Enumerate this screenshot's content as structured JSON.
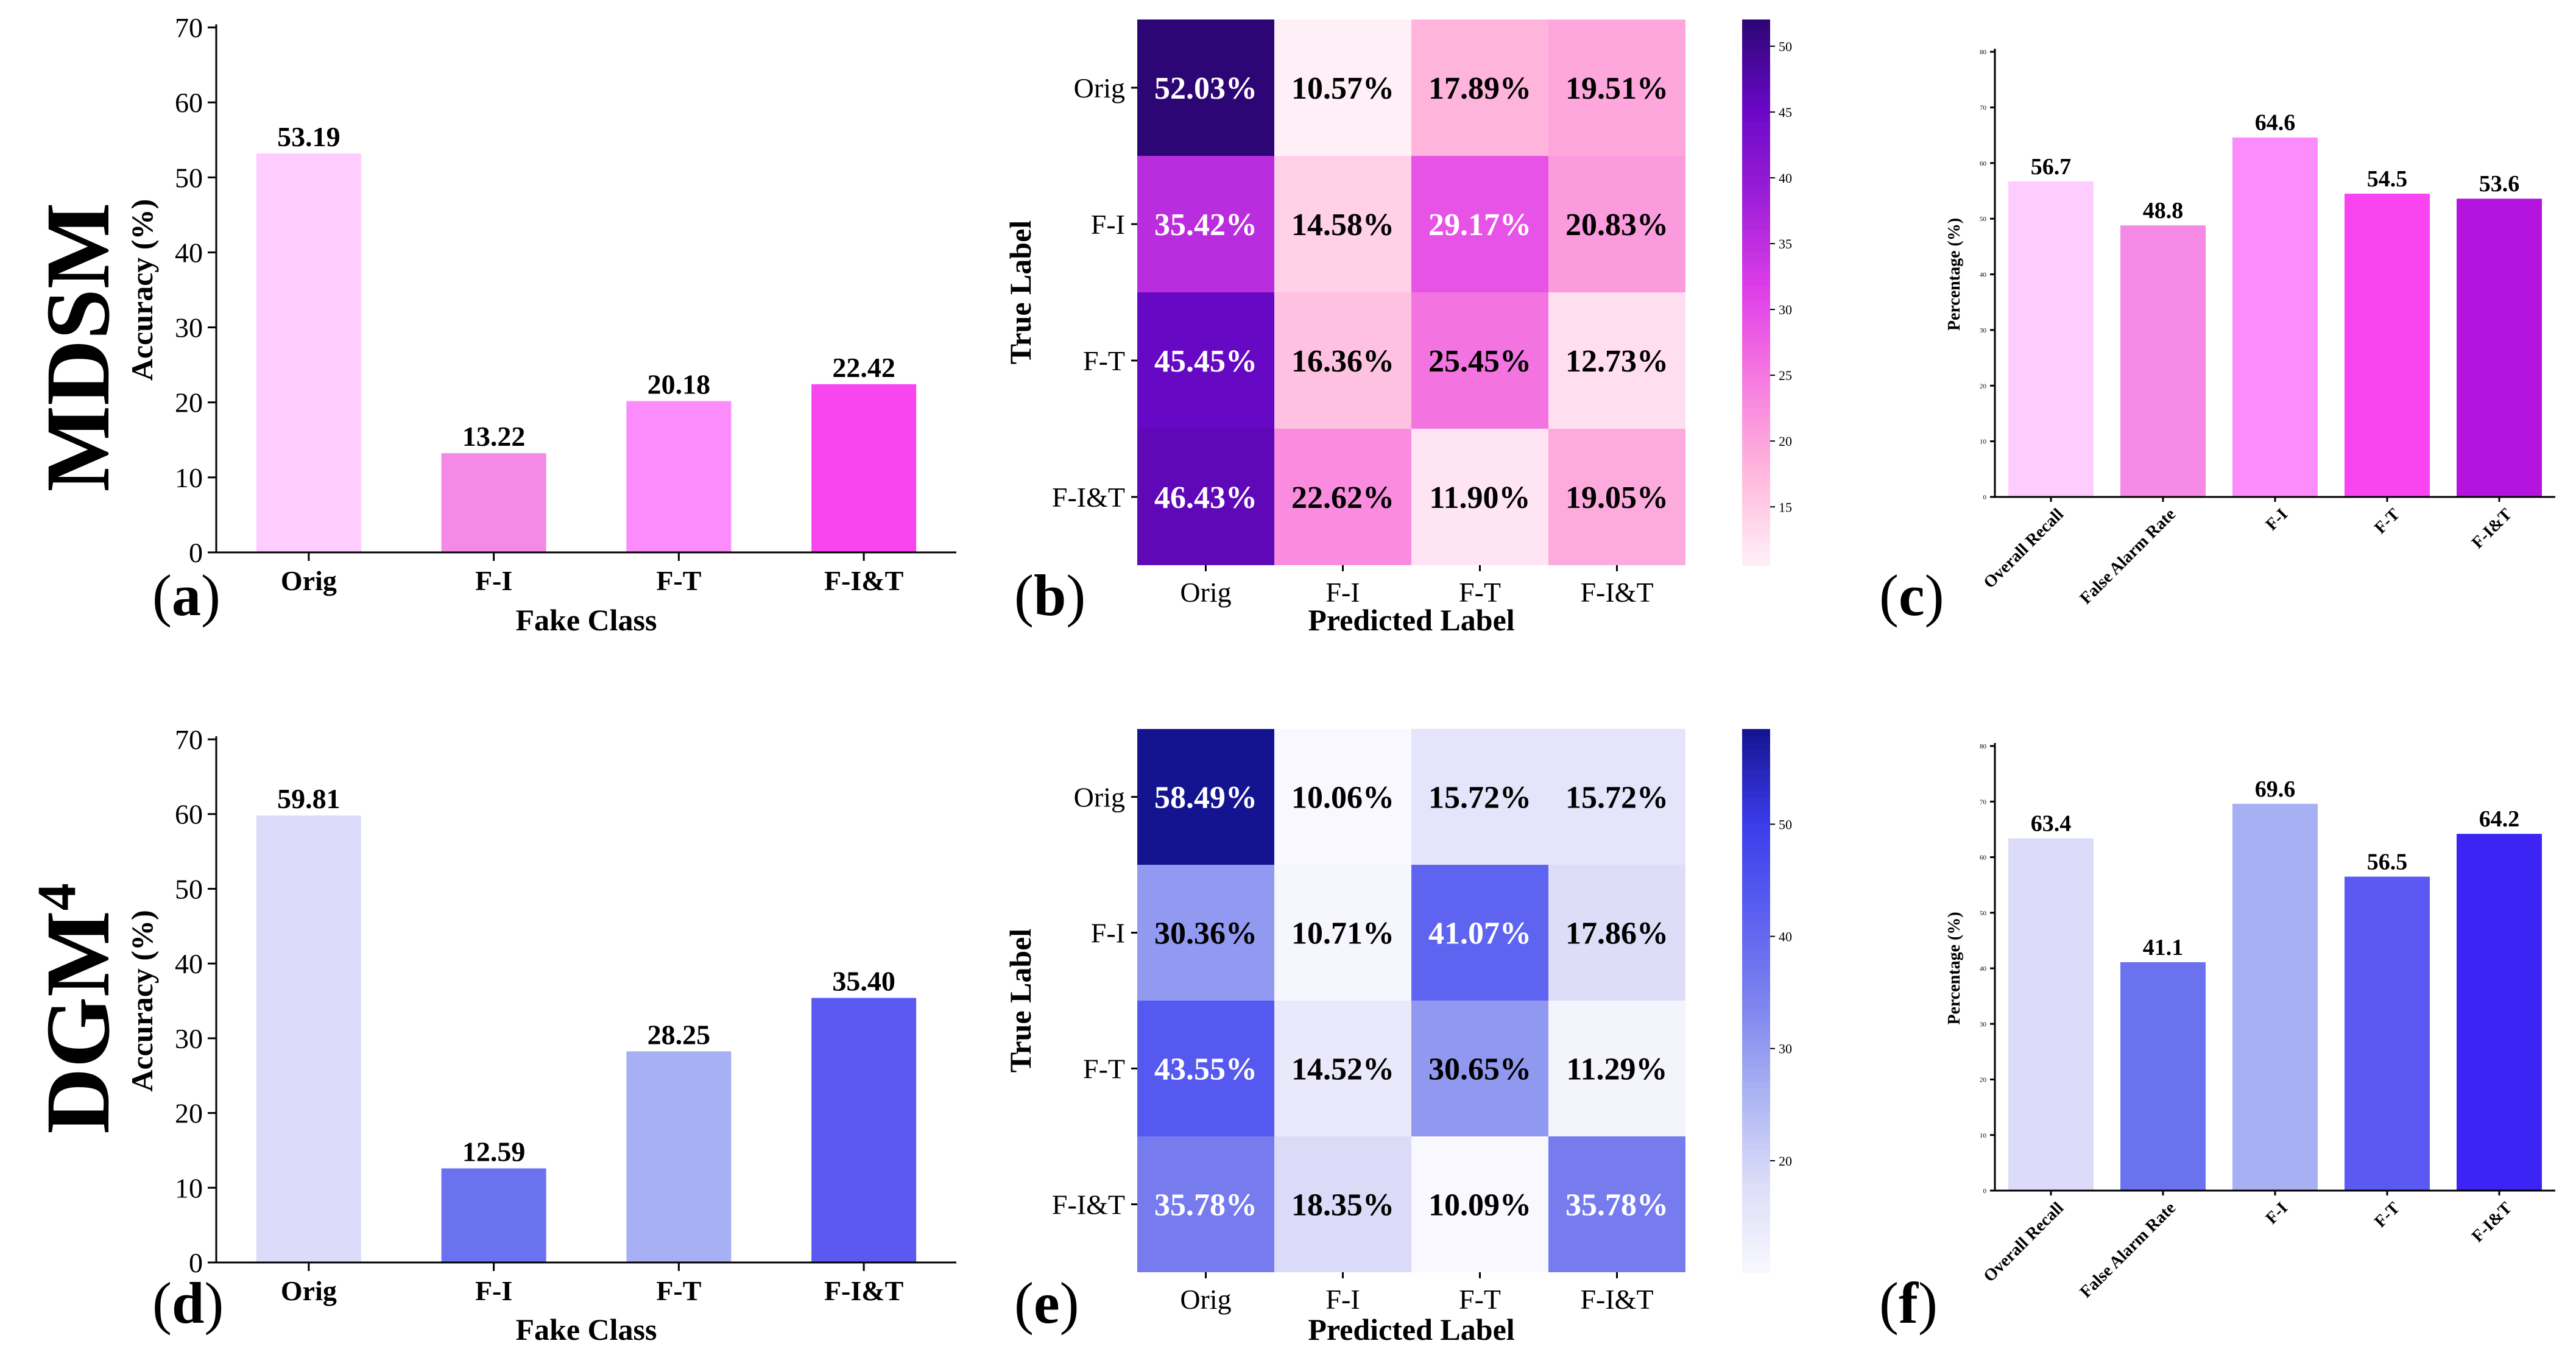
{
  "rows": [
    {
      "label": "MDSM",
      "sup": ""
    },
    {
      "label": "DGM",
      "sup": "4"
    }
  ],
  "panel_labels": [
    "a",
    "b",
    "c",
    "d",
    "e",
    "f"
  ],
  "chart_data": [
    {
      "id": "a",
      "type": "bar",
      "categories": [
        "Orig",
        "F-I",
        "F-T",
        "F-I&T"
      ],
      "values": [
        53.19,
        13.22,
        20.18,
        22.42
      ],
      "value_labels": [
        "53.19",
        "13.22",
        "20.18",
        "22.42"
      ],
      "colors": [
        "#ffccff",
        "#f48ae6",
        "#fc8cfc",
        "#f945f0"
      ],
      "xlabel": "Fake Class",
      "ylabel": "Accuracy (%)",
      "ylim": [
        0,
        70
      ],
      "yticks": [
        0,
        10,
        20,
        30,
        40,
        50,
        60,
        70
      ]
    },
    {
      "id": "b",
      "type": "heatmap",
      "rows": [
        "Orig",
        "F-I",
        "F-T",
        "F-I&T"
      ],
      "cols": [
        "Orig",
        "F-I",
        "F-T",
        "F-I&T"
      ],
      "values": [
        [
          52.03,
          10.57,
          17.89,
          19.51
        ],
        [
          35.42,
          14.58,
          29.17,
          20.83
        ],
        [
          45.45,
          16.36,
          25.45,
          12.73
        ],
        [
          46.43,
          22.62,
          11.9,
          19.05
        ]
      ],
      "cell_labels": [
        [
          "52.03%",
          "10.57%",
          "17.89%",
          "19.51%"
        ],
        [
          "35.42%",
          "14.58%",
          "29.17%",
          "20.83%"
        ],
        [
          "45.45%",
          "16.36%",
          "25.45%",
          "12.73%"
        ],
        [
          "46.43%",
          "22.62%",
          "11.90%",
          "19.05%"
        ]
      ],
      "xlabel": "Predicted Label",
      "ylabel": "True Label",
      "colorbar": {
        "min": 10.57,
        "max": 52.03,
        "ticks": [
          15,
          20,
          25,
          30,
          35,
          40,
          45,
          50
        ]
      },
      "colormap": [
        "#fff0f8",
        "#ffb8dc",
        "#f77de0",
        "#e040e8",
        "#a020d8",
        "#6a08c8",
        "#2d0675"
      ]
    },
    {
      "id": "c",
      "type": "bar",
      "categories": [
        "Overall Recall",
        "False Alarm Rate",
        "F-I",
        "F-T",
        "F-I&T"
      ],
      "values": [
        56.7,
        48.8,
        64.6,
        54.5,
        53.6
      ],
      "value_labels": [
        "56.7",
        "48.8",
        "64.6",
        "54.5",
        "53.6"
      ],
      "colors": [
        "#ffccff",
        "#f48ae6",
        "#fc8cfc",
        "#f945f0",
        "#b414de"
      ],
      "ylabel": "Percentage (%)",
      "ylim": [
        0,
        80
      ],
      "yticks": [
        0,
        10,
        20,
        30,
        40,
        50,
        60,
        70,
        80
      ]
    },
    {
      "id": "d",
      "type": "bar",
      "categories": [
        "Orig",
        "F-I",
        "F-T",
        "F-I&T"
      ],
      "values": [
        59.81,
        12.59,
        28.25,
        35.4
      ],
      "value_labels": [
        "59.81",
        "12.59",
        "28.25",
        "35.40"
      ],
      "colors": [
        "#dcdcfa",
        "#6a72f0",
        "#a8b0f4",
        "#5a5af2"
      ],
      "xlabel": "Fake Class",
      "ylabel": "Accuracy (%)",
      "ylim": [
        0,
        70
      ],
      "yticks": [
        0,
        10,
        20,
        30,
        40,
        50,
        60,
        70
      ]
    },
    {
      "id": "e",
      "type": "heatmap",
      "rows": [
        "Orig",
        "F-I",
        "F-T",
        "F-I&T"
      ],
      "cols": [
        "Orig",
        "F-I",
        "F-T",
        "F-I&T"
      ],
      "values": [
        [
          58.49,
          10.06,
          15.72,
          15.72
        ],
        [
          30.36,
          10.71,
          41.07,
          17.86
        ],
        [
          43.55,
          14.52,
          30.65,
          11.29
        ],
        [
          35.78,
          18.35,
          10.09,
          35.78
        ]
      ],
      "cell_labels": [
        [
          "58.49%",
          "10.06%",
          "15.72%",
          "15.72%"
        ],
        [
          "30.36%",
          "10.71%",
          "41.07%",
          "17.86%"
        ],
        [
          "43.55%",
          "14.52%",
          "30.65%",
          "11.29%"
        ],
        [
          "35.78%",
          "18.35%",
          "10.09%",
          "35.78%"
        ]
      ],
      "xlabel": "Predicted Label",
      "ylabel": "True Label",
      "colorbar": {
        "min": 10.06,
        "max": 58.49,
        "ticks": [
          20,
          30,
          40,
          50
        ]
      },
      "colormap": [
        "#f8f8fe",
        "#dcdcf8",
        "#a8b2f2",
        "#7c82ee",
        "#5a5ef0",
        "#3a3ae8",
        "#141490"
      ]
    },
    {
      "id": "f",
      "type": "bar",
      "categories": [
        "Overall Recall",
        "False Alarm Rate",
        "F-I",
        "F-T",
        "F-I&T"
      ],
      "values": [
        63.4,
        41.1,
        69.6,
        56.5,
        64.2
      ],
      "value_labels": [
        "63.4",
        "41.1",
        "69.6",
        "56.5",
        "64.2"
      ],
      "colors": [
        "#dcdcfa",
        "#6a72f0",
        "#a8b0f4",
        "#5a5af2",
        "#3c24f4"
      ],
      "ylabel": "Percentage (%)",
      "ylim": [
        0,
        80
      ],
      "yticks": [
        0,
        10,
        20,
        30,
        40,
        50,
        60,
        70,
        80
      ]
    }
  ]
}
